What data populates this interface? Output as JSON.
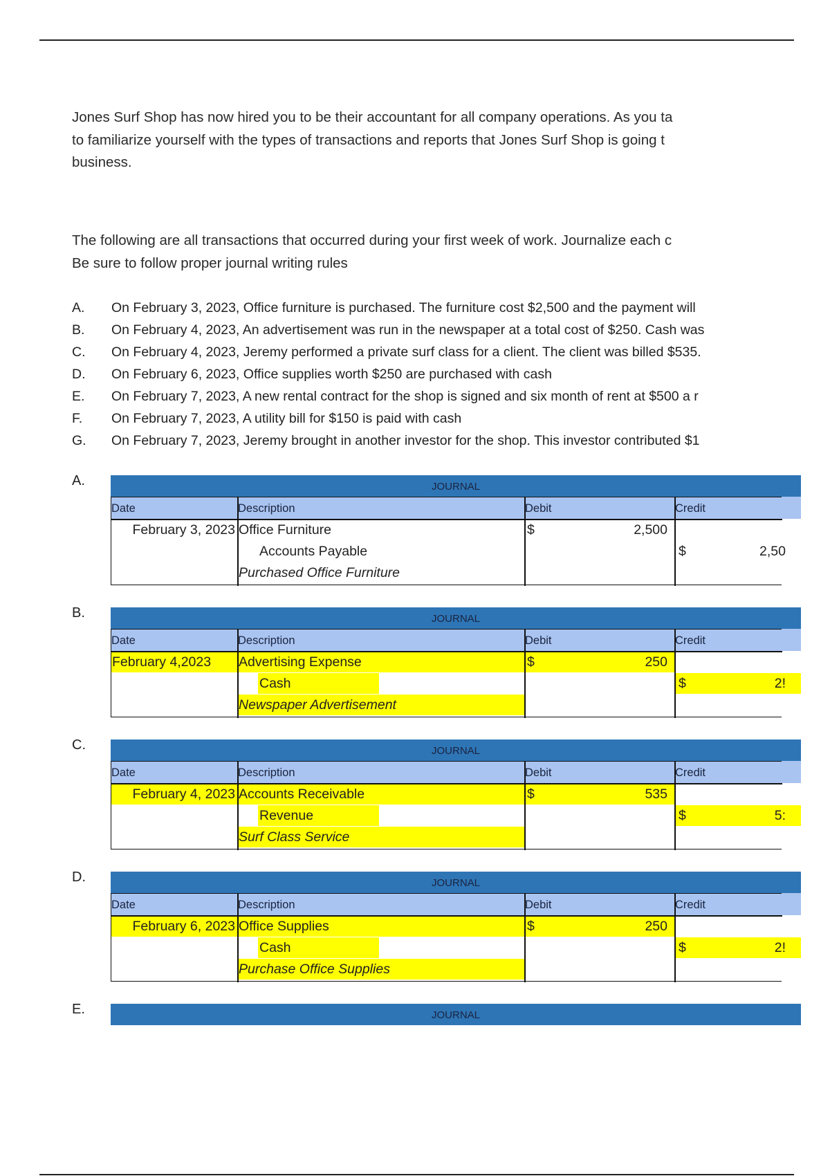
{
  "intro": [
    "Jones Surf Shop has now hired you to be their accountant for all company operations. As you ta",
    "to familiarize yourself with the types of transactions and reports that Jones Surf Shop is going t",
    "business."
  ],
  "instructions": [
    "The following are all transactions that occurred during your first week of work. Journalize each c",
    "Be sure to follow proper journal writing rules"
  ],
  "transactions": [
    {
      "letter": "A.",
      "text": "On February 3, 2023, Office furniture is purchased. The furniture cost $2,500 and the payment will"
    },
    {
      "letter": "B.",
      "text": "On February 4, 2023, An advertisement was run in the newspaper at a total cost of $250. Cash was"
    },
    {
      "letter": "C.",
      "text": "On February 4, 2023, Jeremy performed a private surf class for a client. The client was billed $535."
    },
    {
      "letter": "D.",
      "text": "On February 6, 2023, Office supplies worth $250 are purchased with cash"
    },
    {
      "letter": "E.",
      "text": "On February 7, 2023, A new rental contract for the shop is signed and six month of rent at $500 a r"
    },
    {
      "letter": "F.",
      "text": "On February 7, 2023, A utility bill for $150 is paid with cash"
    },
    {
      "letter": "G.",
      "text": "On February 7, 2023, Jeremy brought in another investor for the shop. This investor contributed $1"
    }
  ],
  "journal_headers": {
    "title": "JOURNAL",
    "date": "Date",
    "description": "Description",
    "debit": "Debit",
    "credit": "Credit"
  },
  "highlight_color": "#ffff00",
  "header_color": "#2e75b6",
  "subheader_color": "#a9c4f0",
  "journals": [
    {
      "letter": "A.",
      "date": "February 3, 2023",
      "debit_account": "Office Furniture",
      "credit_account": "Accounts Payable",
      "memo": "Purchased Office Furniture",
      "currency": "$",
      "debit_amount": "2,500",
      "credit_amount": "2,50",
      "highlighted": false
    },
    {
      "letter": "B.",
      "date": "February 4,2023",
      "debit_account": "Advertising Expense",
      "credit_account": "Cash",
      "memo": "Newspaper Advertisement",
      "currency": "$",
      "debit_amount": "250",
      "credit_amount": "2!",
      "highlighted": true
    },
    {
      "letter": "C.",
      "date": "February 4, 2023",
      "debit_account": "Accounts Receivable",
      "credit_account": "Revenue",
      "memo": "Surf Class Service",
      "currency": "$",
      "debit_amount": "535",
      "credit_amount": "5:",
      "highlighted": true
    },
    {
      "letter": "D.",
      "date": "February 6, 2023",
      "debit_account": "Office Supplies",
      "credit_account": "Cash",
      "memo": "Purchase Office Supplies",
      "currency": "$",
      "debit_amount": "250",
      "credit_amount": "2!",
      "highlighted": true
    },
    {
      "letter": "E.",
      "partial": true
    }
  ]
}
